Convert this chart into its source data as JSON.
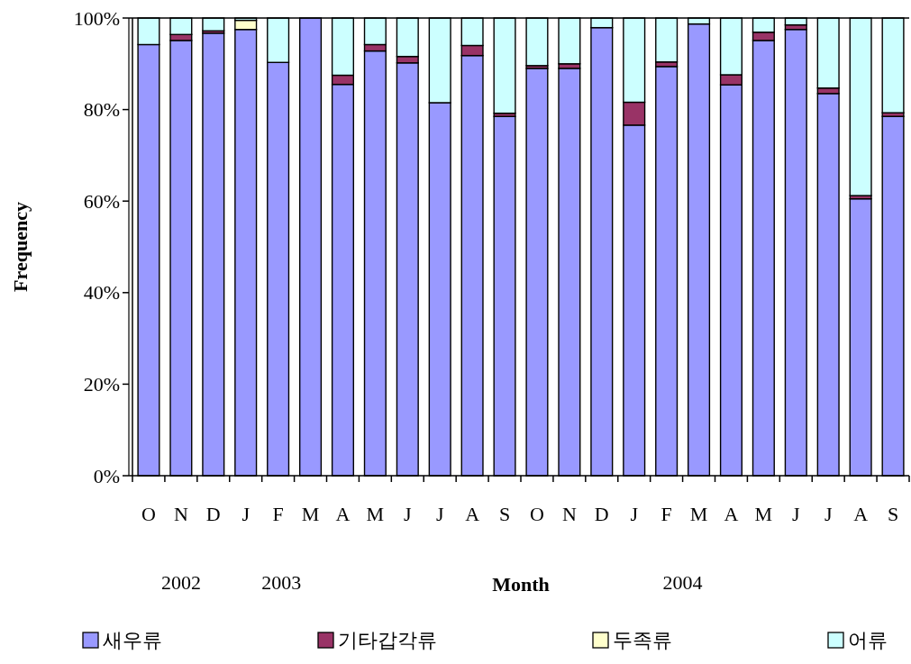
{
  "chart_data": {
    "type": "bar",
    "stacked": true,
    "xlabel": "Month",
    "ylabel": "Frequency",
    "categories": [
      "O",
      "N",
      "D",
      "J",
      "F",
      "M",
      "A",
      "M",
      "J",
      "J",
      "A",
      "S",
      "O",
      "N",
      "D",
      "J",
      "F",
      "M",
      "A",
      "M",
      "J",
      "J",
      "A",
      "S"
    ],
    "ylim": [
      0,
      100
    ],
    "yticks": [
      {
        "value": 0,
        "label": "0%"
      },
      {
        "value": 20,
        "label": "20%"
      },
      {
        "value": 40,
        "label": "40%"
      },
      {
        "value": 60,
        "label": "60%"
      },
      {
        "value": 80,
        "label": "80%"
      },
      {
        "value": 100,
        "label": "100%"
      }
    ],
    "series": [
      {
        "name": "새우류",
        "color": "#9999ff",
        "values": [
          94.2,
          95.1,
          96.7,
          97.5,
          90.3,
          100,
          85.5,
          92.8,
          90.2,
          81.5,
          91.8,
          78.5,
          89.0,
          89.0,
          97.9,
          76.6,
          89.4,
          98.7,
          85.4,
          95.1,
          97.5,
          83.5,
          60.5,
          78.5
        ]
      },
      {
        "name": "기타갑각류",
        "color": "#993366",
        "values": [
          null,
          1.3,
          0.5,
          null,
          null,
          null,
          2.0,
          1.4,
          1.4,
          null,
          2.2,
          0.7,
          0.6,
          1.0,
          null,
          5.0,
          1.0,
          null,
          2.2,
          1.8,
          1.0,
          1.2,
          0.7,
          0.8
        ]
      },
      {
        "name": "두족류",
        "color": "#ffffcc",
        "values": [
          null,
          null,
          null,
          2.0,
          null,
          null,
          null,
          null,
          null,
          null,
          null,
          null,
          null,
          null,
          null,
          null,
          null,
          null,
          null,
          null,
          null,
          null,
          null,
          null
        ]
      },
      {
        "name": "어류",
        "color": "#ccffff",
        "values": [
          5.8,
          3.6,
          2.8,
          0.5,
          9.7,
          null,
          12.5,
          5.8,
          8.4,
          18.5,
          6.0,
          20.8,
          10.4,
          10.0,
          2.1,
          18.4,
          9.6,
          1.3,
          12.4,
          3.1,
          1.5,
          15.3,
          38.8,
          20.7
        ]
      }
    ],
    "annotations": [
      "2002",
      "2003",
      "2004"
    ],
    "legend": "bottom"
  }
}
